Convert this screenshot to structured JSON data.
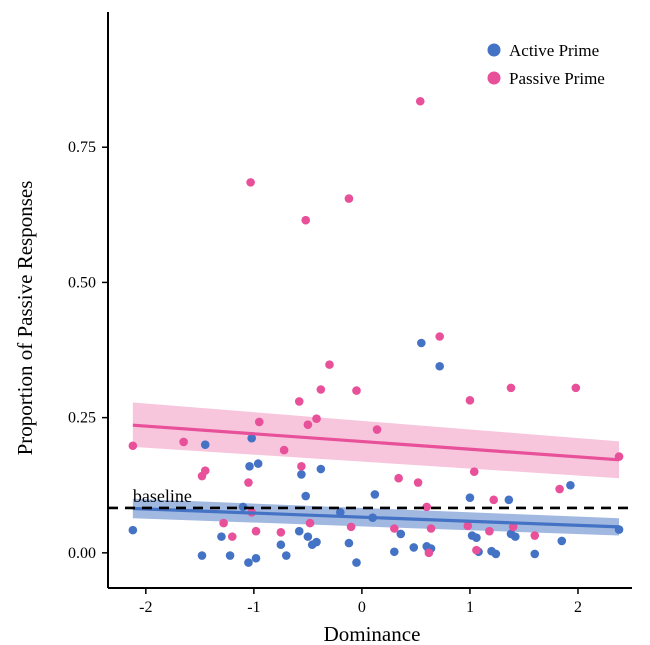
{
  "chart_data": {
    "type": "scatter",
    "xlabel": "Dominance",
    "ylabel": "Proportion of Passive Responses",
    "xlim": [
      -2.35,
      2.5
    ],
    "ylim": [
      -0.065,
      1.0
    ],
    "x_ticks": [
      -2,
      -1,
      0,
      1,
      2
    ],
    "y_ticks": [
      0.0,
      0.25,
      0.5,
      0.75
    ],
    "x_tick_labels": [
      "-2",
      "-1",
      "0",
      "1",
      "2"
    ],
    "y_tick_labels": [
      "0.00",
      "0.25",
      "0.50",
      "0.75"
    ],
    "legend_position": "top-right",
    "baseline": {
      "y": 0.083,
      "label": "baseline"
    },
    "series": [
      {
        "name": "Active Prime",
        "color": "#4472C4",
        "ribbon_color": "#4472C4",
        "fit": {
          "x": [
            -2.12,
            2.38
          ],
          "y": [
            0.082,
            0.048
          ],
          "band_lower": [
            0.064,
            0.032
          ],
          "band_upper": [
            0.1,
            0.064
          ]
        },
        "points": [
          [
            -2.12,
            0.042
          ],
          [
            -1.45,
            0.2
          ],
          [
            -1.48,
            -0.005
          ],
          [
            -1.3,
            0.03
          ],
          [
            -1.22,
            -0.005
          ],
          [
            -1.1,
            0.085
          ],
          [
            -1.05,
            -0.018
          ],
          [
            -1.04,
            0.16
          ],
          [
            -1.02,
            0.212
          ],
          [
            -0.98,
            -0.01
          ],
          [
            -0.96,
            0.165
          ],
          [
            -0.75,
            0.015
          ],
          [
            -0.7,
            -0.005
          ],
          [
            -0.58,
            0.04
          ],
          [
            -0.56,
            0.145
          ],
          [
            -0.52,
            0.105
          ],
          [
            -0.5,
            0.03
          ],
          [
            -0.46,
            0.015
          ],
          [
            -0.42,
            0.02
          ],
          [
            -0.38,
            0.155
          ],
          [
            -0.2,
            0.075
          ],
          [
            -0.12,
            0.018
          ],
          [
            -0.05,
            -0.018
          ],
          [
            0.1,
            0.065
          ],
          [
            0.12,
            0.108
          ],
          [
            0.3,
            0.002
          ],
          [
            0.36,
            0.035
          ],
          [
            0.48,
            0.01
          ],
          [
            0.55,
            0.388
          ],
          [
            0.6,
            0.012
          ],
          [
            0.62,
            0.005
          ],
          [
            0.64,
            0.008
          ],
          [
            0.72,
            0.345
          ],
          [
            1.0,
            0.102
          ],
          [
            1.02,
            0.032
          ],
          [
            1.06,
            0.028
          ],
          [
            1.08,
            0.002
          ],
          [
            1.2,
            0.003
          ],
          [
            1.24,
            -0.002
          ],
          [
            1.36,
            0.098
          ],
          [
            1.38,
            0.035
          ],
          [
            1.42,
            0.03
          ],
          [
            1.6,
            -0.002
          ],
          [
            1.85,
            0.022
          ],
          [
            1.93,
            0.125
          ],
          [
            2.38,
            0.043
          ]
        ]
      },
      {
        "name": "Passive Prime",
        "color": "#E8509A",
        "ribbon_color": "#F08CBA",
        "fit": {
          "x": [
            -2.12,
            2.38
          ],
          "y": [
            0.236,
            0.172
          ],
          "band_lower": [
            0.196,
            0.138
          ],
          "band_upper": [
            0.278,
            0.206
          ]
        },
        "points": [
          [
            -2.12,
            0.198
          ],
          [
            -1.65,
            0.205
          ],
          [
            -1.48,
            0.142
          ],
          [
            -1.45,
            0.152
          ],
          [
            -1.28,
            0.055
          ],
          [
            -1.2,
            0.03
          ],
          [
            -1.05,
            0.13
          ],
          [
            -1.03,
            0.685
          ],
          [
            -1.02,
            0.075
          ],
          [
            -0.98,
            0.04
          ],
          [
            -0.95,
            0.242
          ],
          [
            -0.75,
            0.038
          ],
          [
            -0.72,
            0.19
          ],
          [
            -0.58,
            0.28
          ],
          [
            -0.56,
            0.16
          ],
          [
            -0.52,
            0.615
          ],
          [
            -0.5,
            0.237
          ],
          [
            -0.48,
            0.055
          ],
          [
            -0.42,
            0.248
          ],
          [
            -0.38,
            0.302
          ],
          [
            -0.3,
            0.348
          ],
          [
            -0.12,
            0.655
          ],
          [
            -0.1,
            0.048
          ],
          [
            -0.05,
            0.3
          ],
          [
            0.14,
            0.228
          ],
          [
            0.3,
            0.045
          ],
          [
            0.34,
            0.138
          ],
          [
            0.52,
            0.13
          ],
          [
            0.54,
            0.835
          ],
          [
            0.6,
            0.085
          ],
          [
            0.62,
            0.0
          ],
          [
            0.64,
            0.045
          ],
          [
            0.72,
            0.4
          ],
          [
            1.0,
            0.282
          ],
          [
            1.04,
            0.15
          ],
          [
            1.06,
            0.005
          ],
          [
            1.22,
            0.098
          ],
          [
            1.38,
            0.305
          ],
          [
            1.4,
            0.048
          ],
          [
            1.6,
            0.032
          ],
          [
            1.83,
            0.118
          ],
          [
            1.98,
            0.305
          ],
          [
            2.38,
            0.178
          ],
          [
            1.18,
            0.04
          ],
          [
            0.98,
            0.05
          ]
        ]
      }
    ]
  }
}
